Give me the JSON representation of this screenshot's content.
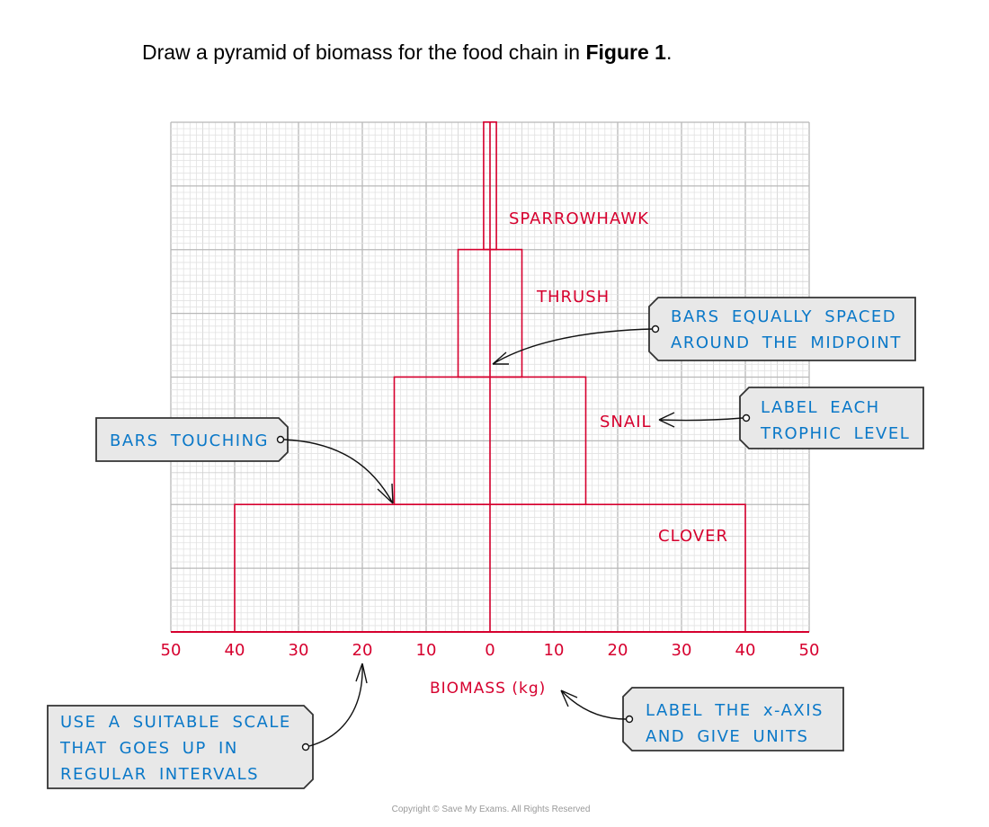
{
  "question": {
    "prefix": "Draw a pyramid of biomass for the food chain in ",
    "bold": "Figure 1",
    "suffix": "."
  },
  "chart_data": {
    "type": "bar",
    "orientation": "horizontal-centred pyramid",
    "xlabel": "BIOMASS (kg)",
    "x_ticks": [
      "50",
      "40",
      "30",
      "20",
      "10",
      "0",
      "10",
      "20",
      "30",
      "40",
      "50"
    ],
    "xlim": [
      -50,
      50
    ],
    "grid": true,
    "levels": [
      {
        "name": "CLOVER",
        "half_width": 40
      },
      {
        "name": "SNAIL",
        "half_width": 15
      },
      {
        "name": "THRUSH",
        "half_width": 5
      },
      {
        "name": "SPARROWHAWK",
        "half_width": 1
      }
    ]
  },
  "callouts": {
    "midpoint": [
      "BARS EQUALLY SPACED",
      "AROUND THE MIDPOINT"
    ],
    "label": [
      "LABEL EACH",
      "TROPHIC LEVEL"
    ],
    "touching": [
      "BARS TOUCHING"
    ],
    "scale": [
      "USE A SUITABLE SCALE",
      "THAT GOES UP IN",
      "REGULAR INTERVALS"
    ],
    "axis": [
      "LABEL THE x-AXIS",
      "AND GIVE UNITS"
    ]
  },
  "colors": {
    "bars": "#d6002e",
    "callout_text": "#0a78c8",
    "callout_fill": "#e8e8e8",
    "grid": "#c8c8c8"
  },
  "copyright": "Copyright © Save My Exams. All Rights Reserved"
}
